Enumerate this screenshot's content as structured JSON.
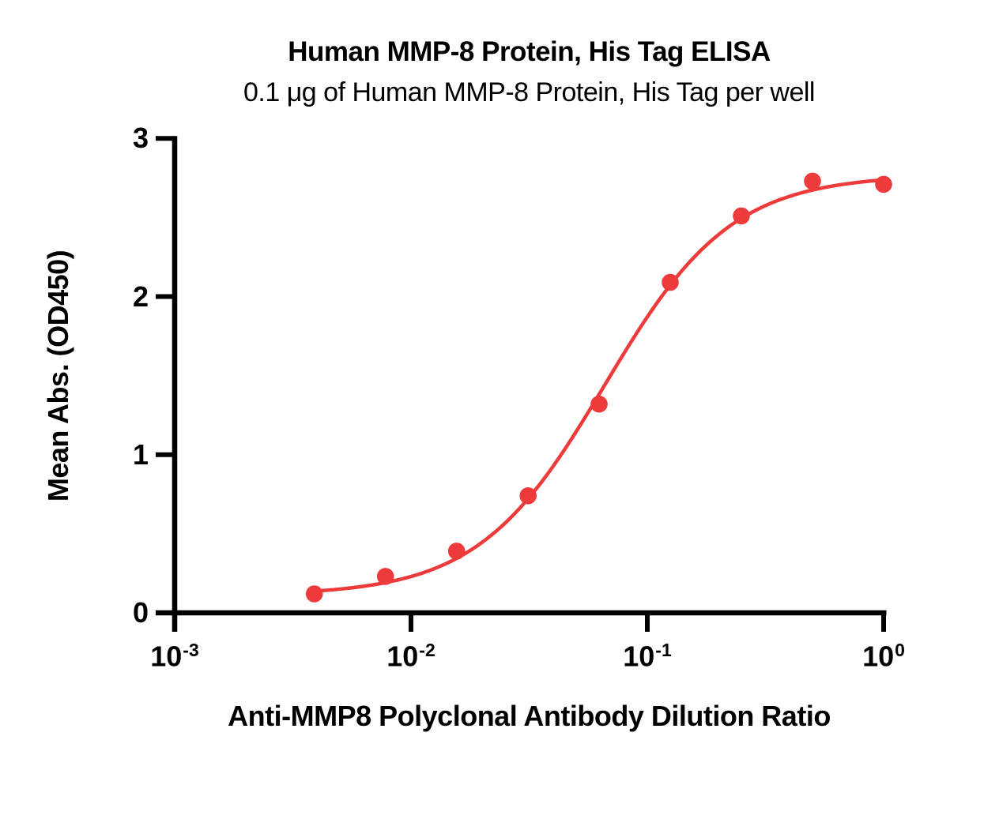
{
  "chart_data": {
    "type": "scatter",
    "title": "Human MMP-8 Protein, His Tag ELISA",
    "subtitle": "0.1 μg of Human MMP-8 Protein, His Tag per well",
    "xlabel": "Anti-MMP8 Polyclonal Antibody Dilution Ratio",
    "ylabel": "Mean Abs. (OD450)",
    "x_scale": "log10",
    "xlim": [
      0.001,
      1
    ],
    "ylim": [
      0,
      3
    ],
    "x_tick_exponents": [
      -3,
      -2,
      -1,
      0
    ],
    "y_ticks": [
      0,
      1,
      2,
      3
    ],
    "grid": false,
    "legend": false,
    "series": [
      {
        "marker": "circle",
        "color": "#ED3B3B",
        "points": [
          {
            "dilution": 0.0039,
            "od450": 0.12
          },
          {
            "dilution": 0.0078,
            "od450": 0.23
          },
          {
            "dilution": 0.0156,
            "od450": 0.39
          },
          {
            "dilution": 0.0313,
            "od450": 0.74
          },
          {
            "dilution": 0.0625,
            "od450": 1.32
          },
          {
            "dilution": 0.125,
            "od450": 2.09
          },
          {
            "dilution": 0.25,
            "od450": 2.51
          },
          {
            "dilution": 0.5,
            "od450": 2.73
          },
          {
            "dilution": 1.0,
            "od450": 2.71
          }
        ],
        "fit": {
          "model": "4PL",
          "bottom": 0.11,
          "top": 2.77,
          "ec50": 0.066,
          "hill": 1.62
        }
      }
    ],
    "colors": {
      "curve": "#ED3B3B",
      "axis": "#000000",
      "text": "#000000",
      "background": "#FFFFFF"
    }
  }
}
